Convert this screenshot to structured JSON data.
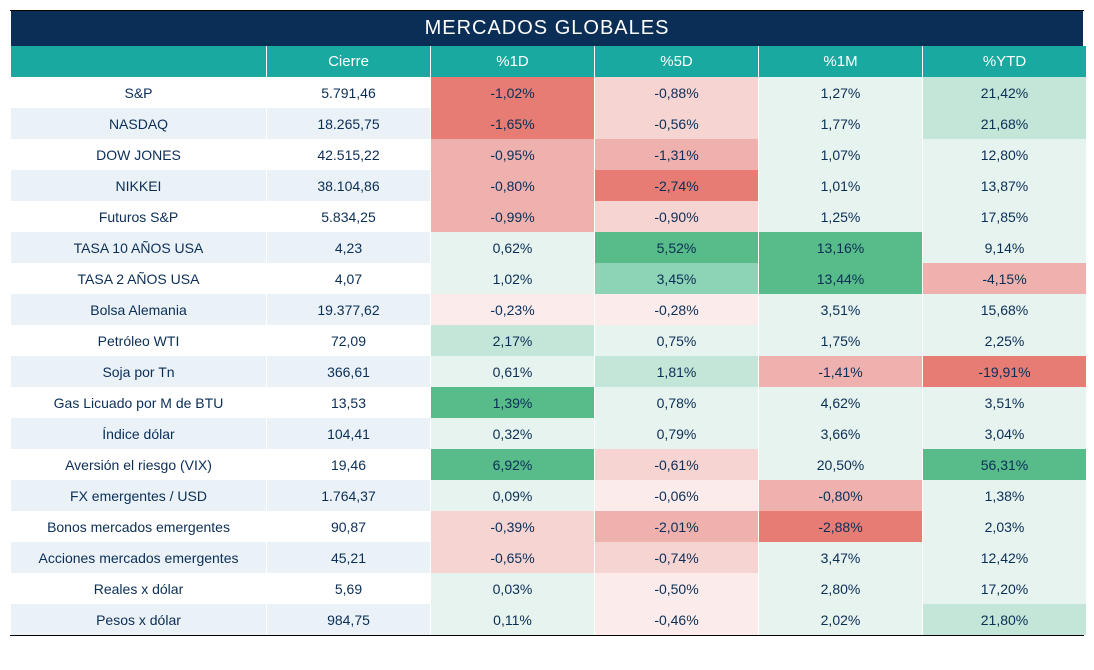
{
  "title": "MERCADOS GLOBALES",
  "columns": [
    "",
    "Cierre",
    "%1D",
    "%5D",
    "%1M",
    "%YTD"
  ],
  "text_color": "#0b2e56",
  "colors": {
    "header_bg": "#0b2e56",
    "col_header_bg": "#1aa9a0",
    "row_odd": "#ffffff",
    "row_even": "#eaf2f8",
    "tiers": {
      "pos1": "#e6f3ee",
      "pos2": "#c4e6d8",
      "pos3": "#8dd3b6",
      "pos4": "#57bb8a",
      "neg1": "#fbeceb",
      "neg2": "#f6d4d2",
      "neg3": "#efb1ad",
      "neg4": "#e67c73"
    }
  },
  "rows": [
    {
      "name": "S&P",
      "close": "5.791,46",
      "pcts": [
        {
          "v": "-1,02%",
          "t": "neg4"
        },
        {
          "v": "-0,88%",
          "t": "neg2"
        },
        {
          "v": "1,27%",
          "t": "pos1"
        },
        {
          "v": "21,42%",
          "t": "pos2"
        }
      ]
    },
    {
      "name": "NASDAQ",
      "close": "18.265,75",
      "pcts": [
        {
          "v": "-1,65%",
          "t": "neg4"
        },
        {
          "v": "-0,56%",
          "t": "neg2"
        },
        {
          "v": "1,77%",
          "t": "pos1"
        },
        {
          "v": "21,68%",
          "t": "pos2"
        }
      ]
    },
    {
      "name": "DOW JONES",
      "close": "42.515,22",
      "pcts": [
        {
          "v": "-0,95%",
          "t": "neg3"
        },
        {
          "v": "-1,31%",
          "t": "neg3"
        },
        {
          "v": "1,07%",
          "t": "pos1"
        },
        {
          "v": "12,80%",
          "t": "pos1"
        }
      ]
    },
    {
      "name": "NIKKEI",
      "close": "38.104,86",
      "pcts": [
        {
          "v": "-0,80%",
          "t": "neg3"
        },
        {
          "v": "-2,74%",
          "t": "neg4"
        },
        {
          "v": "1,01%",
          "t": "pos1"
        },
        {
          "v": "13,87%",
          "t": "pos1"
        }
      ]
    },
    {
      "name": "Futuros S&P",
      "close": "5.834,25",
      "pcts": [
        {
          "v": "-0,99%",
          "t": "neg3"
        },
        {
          "v": "-0,90%",
          "t": "neg2"
        },
        {
          "v": "1,25%",
          "t": "pos1"
        },
        {
          "v": "17,85%",
          "t": "pos1"
        }
      ]
    },
    {
      "name": "TASA 10 AÑOS USA",
      "close": "4,23",
      "pcts": [
        {
          "v": "0,62%",
          "t": "pos1"
        },
        {
          "v": "5,52%",
          "t": "pos4"
        },
        {
          "v": "13,16%",
          "t": "pos4"
        },
        {
          "v": "9,14%",
          "t": "pos1"
        }
      ]
    },
    {
      "name": "TASA 2 AÑOS USA",
      "close": "4,07",
      "pcts": [
        {
          "v": "1,02%",
          "t": "pos1"
        },
        {
          "v": "3,45%",
          "t": "pos3"
        },
        {
          "v": "13,44%",
          "t": "pos4"
        },
        {
          "v": "-4,15%",
          "t": "neg3"
        }
      ]
    },
    {
      "name": "Bolsa Alemania",
      "close": "19.377,62",
      "pcts": [
        {
          "v": "-0,23%",
          "t": "neg1"
        },
        {
          "v": "-0,28%",
          "t": "neg1"
        },
        {
          "v": "3,51%",
          "t": "pos1"
        },
        {
          "v": "15,68%",
          "t": "pos1"
        }
      ]
    },
    {
      "name": "Petróleo WTI",
      "close": "72,09",
      "pcts": [
        {
          "v": "2,17%",
          "t": "pos2"
        },
        {
          "v": "0,75%",
          "t": "pos1"
        },
        {
          "v": "1,75%",
          "t": "pos1"
        },
        {
          "v": "2,25%",
          "t": "pos1"
        }
      ]
    },
    {
      "name": "Soja por Tn",
      "close": "366,61",
      "pcts": [
        {
          "v": "0,61%",
          "t": "pos1"
        },
        {
          "v": "1,81%",
          "t": "pos2"
        },
        {
          "v": "-1,41%",
          "t": "neg3"
        },
        {
          "v": "-19,91%",
          "t": "neg4"
        }
      ]
    },
    {
      "name": "Gas Licuado por M de BTU",
      "close": "13,53",
      "pcts": [
        {
          "v": "1,39%",
          "t": "pos4"
        },
        {
          "v": "0,78%",
          "t": "pos1"
        },
        {
          "v": "4,62%",
          "t": "pos1"
        },
        {
          "v": "3,51%",
          "t": "pos1"
        }
      ]
    },
    {
      "name": "Índice dólar",
      "close": "104,41",
      "pcts": [
        {
          "v": "0,32%",
          "t": "pos1"
        },
        {
          "v": "0,79%",
          "t": "pos1"
        },
        {
          "v": "3,66%",
          "t": "pos1"
        },
        {
          "v": "3,04%",
          "t": "pos1"
        }
      ]
    },
    {
      "name": "Aversión el riesgo (VIX)",
      "close": "19,46",
      "pcts": [
        {
          "v": "6,92%",
          "t": "pos4"
        },
        {
          "v": "-0,61%",
          "t": "neg2"
        },
        {
          "v": "20,50%",
          "t": "pos1"
        },
        {
          "v": "56,31%",
          "t": "pos4"
        }
      ]
    },
    {
      "name": "FX emergentes / USD",
      "close": "1.764,37",
      "pcts": [
        {
          "v": "0,09%",
          "t": "pos1"
        },
        {
          "v": "-0,06%",
          "t": "neg1"
        },
        {
          "v": "-0,80%",
          "t": "neg3"
        },
        {
          "v": "1,38%",
          "t": "pos1"
        }
      ]
    },
    {
      "name": "Bonos mercados emergentes",
      "close": "90,87",
      "pcts": [
        {
          "v": "-0,39%",
          "t": "neg2"
        },
        {
          "v": "-2,01%",
          "t": "neg3"
        },
        {
          "v": "-2,88%",
          "t": "neg4"
        },
        {
          "v": "2,03%",
          "t": "pos1"
        }
      ]
    },
    {
      "name": "Acciones mercados emergentes",
      "close": "45,21",
      "pcts": [
        {
          "v": "-0,65%",
          "t": "neg2"
        },
        {
          "v": "-0,74%",
          "t": "neg2"
        },
        {
          "v": "3,47%",
          "t": "pos1"
        },
        {
          "v": "12,42%",
          "t": "pos1"
        }
      ]
    },
    {
      "name": "Reales x dólar",
      "close": "5,69",
      "pcts": [
        {
          "v": "0,03%",
          "t": "pos1"
        },
        {
          "v": "-0,50%",
          "t": "neg1"
        },
        {
          "v": "2,80%",
          "t": "pos1"
        },
        {
          "v": "17,20%",
          "t": "pos1"
        }
      ]
    },
    {
      "name": "Pesos x dólar",
      "close": "984,75",
      "pcts": [
        {
          "v": "0,11%",
          "t": "pos1"
        },
        {
          "v": "-0,46%",
          "t": "neg1"
        },
        {
          "v": "2,02%",
          "t": "pos1"
        },
        {
          "v": "21,80%",
          "t": "pos2"
        }
      ]
    }
  ]
}
